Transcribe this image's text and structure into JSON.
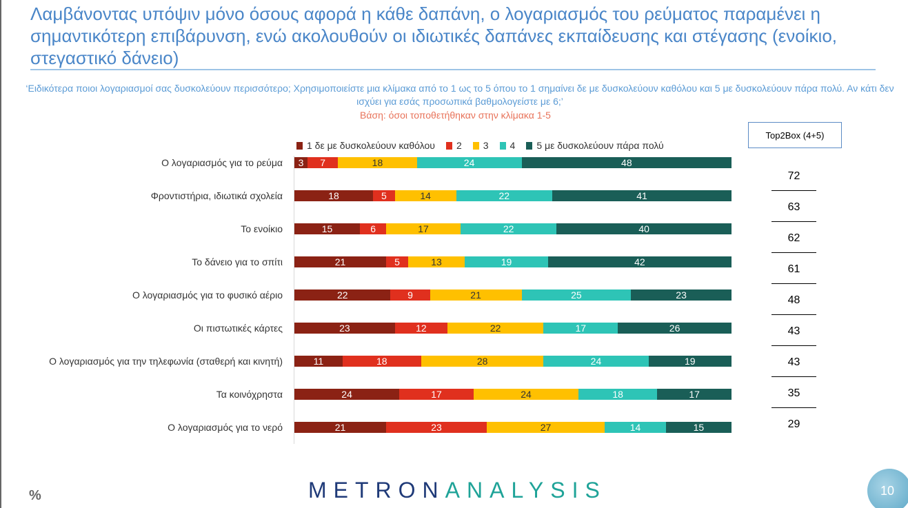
{
  "title": "Λαμβάνοντας υπόψιν μόνο όσους αφορά η κάθε δαπάνη, ο λογαριασμός του ρεύματος παραμένει η σημαντικότερη επιβάρυνση, ενώ ακολουθούν οι ιδιωτικές δαπάνες εκπαίδευσης και στέγασης (ενοίκιο, στεγαστικό δάνειο)",
  "question": "‘Ειδικότερα ποιοι λογαριασμοί σας δυσκολεύουν περισσότερο; Χρησιμοποιείστε μια κλίμακα από το 1 ως το 5 όπου το 1 σημαίνει δε με δυσκολεύουν καθόλου και 5 με δυσκολεύουν πάρα πολύ. Αν κάτι δεν ισχύει για εσάς προσωπικά βαθμολογείστε με 6;’",
  "base": "Βάση: όσοι τοποθετήθηκαν στην κλίμακα 1-5",
  "top2box_label": "Top2Box (4+5)",
  "logo": {
    "part1": "METRON",
    "part2": "ANALYSIS"
  },
  "percent_symbol": "%",
  "page_number": "10",
  "chart_data": {
    "type": "bar",
    "stacked": true,
    "orientation": "horizontal",
    "categories": [
      "Ο λογαριασμός για το ρεύμα",
      "Φροντιστήρια, ιδιωτικά σχολεία",
      "Το ενοίκιο",
      "Το δάνειο για το σπίτι",
      "Ο λογαριασμός για το φυσικό αέριο",
      "Οι πιστωτικές κάρτες",
      "Ο λογαριασμός για την τηλεφωνία (σταθερή και κινητή)",
      "Τα κοινόχρηστα",
      "Ο λογαριασμός για το νερό"
    ],
    "series": [
      {
        "name": "1  δε με δυσκολεύουν καθόλου",
        "color": "#8b2214",
        "values": [
          3,
          18,
          15,
          21,
          22,
          23,
          11,
          24,
          21
        ]
      },
      {
        "name": "2",
        "color": "#e0301e",
        "values": [
          7,
          5,
          6,
          5,
          9,
          12,
          18,
          17,
          23
        ]
      },
      {
        "name": "3",
        "color": "#ffc000",
        "values": [
          18,
          14,
          17,
          13,
          21,
          22,
          28,
          24,
          27
        ]
      },
      {
        "name": "4",
        "color": "#2ec4b6",
        "values": [
          24,
          22,
          22,
          19,
          25,
          17,
          24,
          18,
          14
        ]
      },
      {
        "name": "5 με δυσκολεύουν πάρα πολύ",
        "color": "#1a5e57",
        "values": [
          48,
          41,
          40,
          42,
          23,
          26,
          19,
          17,
          15
        ]
      }
    ],
    "top2box": [
      72,
      63,
      62,
      61,
      48,
      43,
      43,
      35,
      29
    ],
    "legend": "top",
    "xlim": [
      0,
      100
    ]
  }
}
